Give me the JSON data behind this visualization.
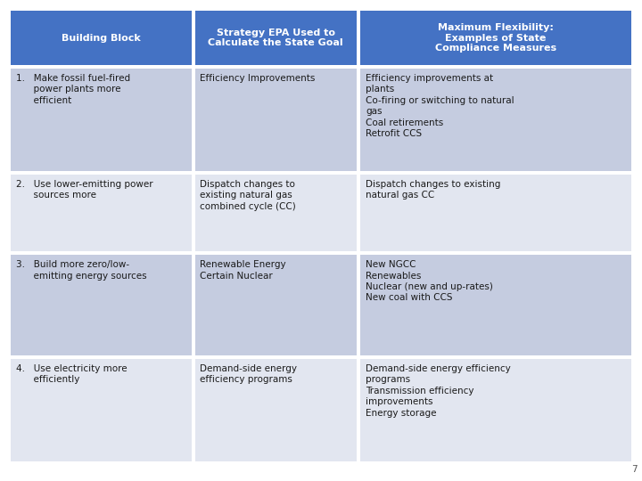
{
  "header": {
    "col1": "Building Block",
    "col2": "Strategy EPA Used to\nCalculate the State Goal",
    "col3": "Maximum Flexibility:\nExamples of State\nCompliance Measures"
  },
  "rows": [
    {
      "col1": "1.   Make fossil fuel-fired\n      power plants more\n      efficient",
      "col2": "Efficiency Improvements",
      "col3": "Efficiency improvements at\nplants\nCo-firing or switching to natural\ngas\nCoal retirements\nRetrofit CCS"
    },
    {
      "col1": "2.   Use lower-emitting power\n      sources more",
      "col2": "Dispatch changes to\nexisting natural gas\ncombined cycle (CC)",
      "col3": "Dispatch changes to existing\nnatural gas CC"
    },
    {
      "col1": "3.   Build more zero/low-\n      emitting energy sources",
      "col2": "Renewable Energy\nCertain Nuclear",
      "col3": "New NGCC\nRenewables\nNuclear (new and up-rates)\nNew coal with CCS"
    },
    {
      "col1": "4.   Use electricity more\n      efficiently",
      "col2": "Demand-side energy\nefficiency programs",
      "col3": "Demand-side energy efficiency\nprograms\nTransmission efficiency\nimprovements\nEnergy storage"
    }
  ],
  "header_bg": "#4472C4",
  "header_text_color": "#FFFFFF",
  "row_bg_odd": "#C5CCE0",
  "row_bg_even": "#E2E6F0",
  "body_text_color": "#1A1A1A",
  "border_color": "#FFFFFF",
  "page_number": "7",
  "fig_width": 7.2,
  "fig_height": 5.4,
  "dpi": 100
}
